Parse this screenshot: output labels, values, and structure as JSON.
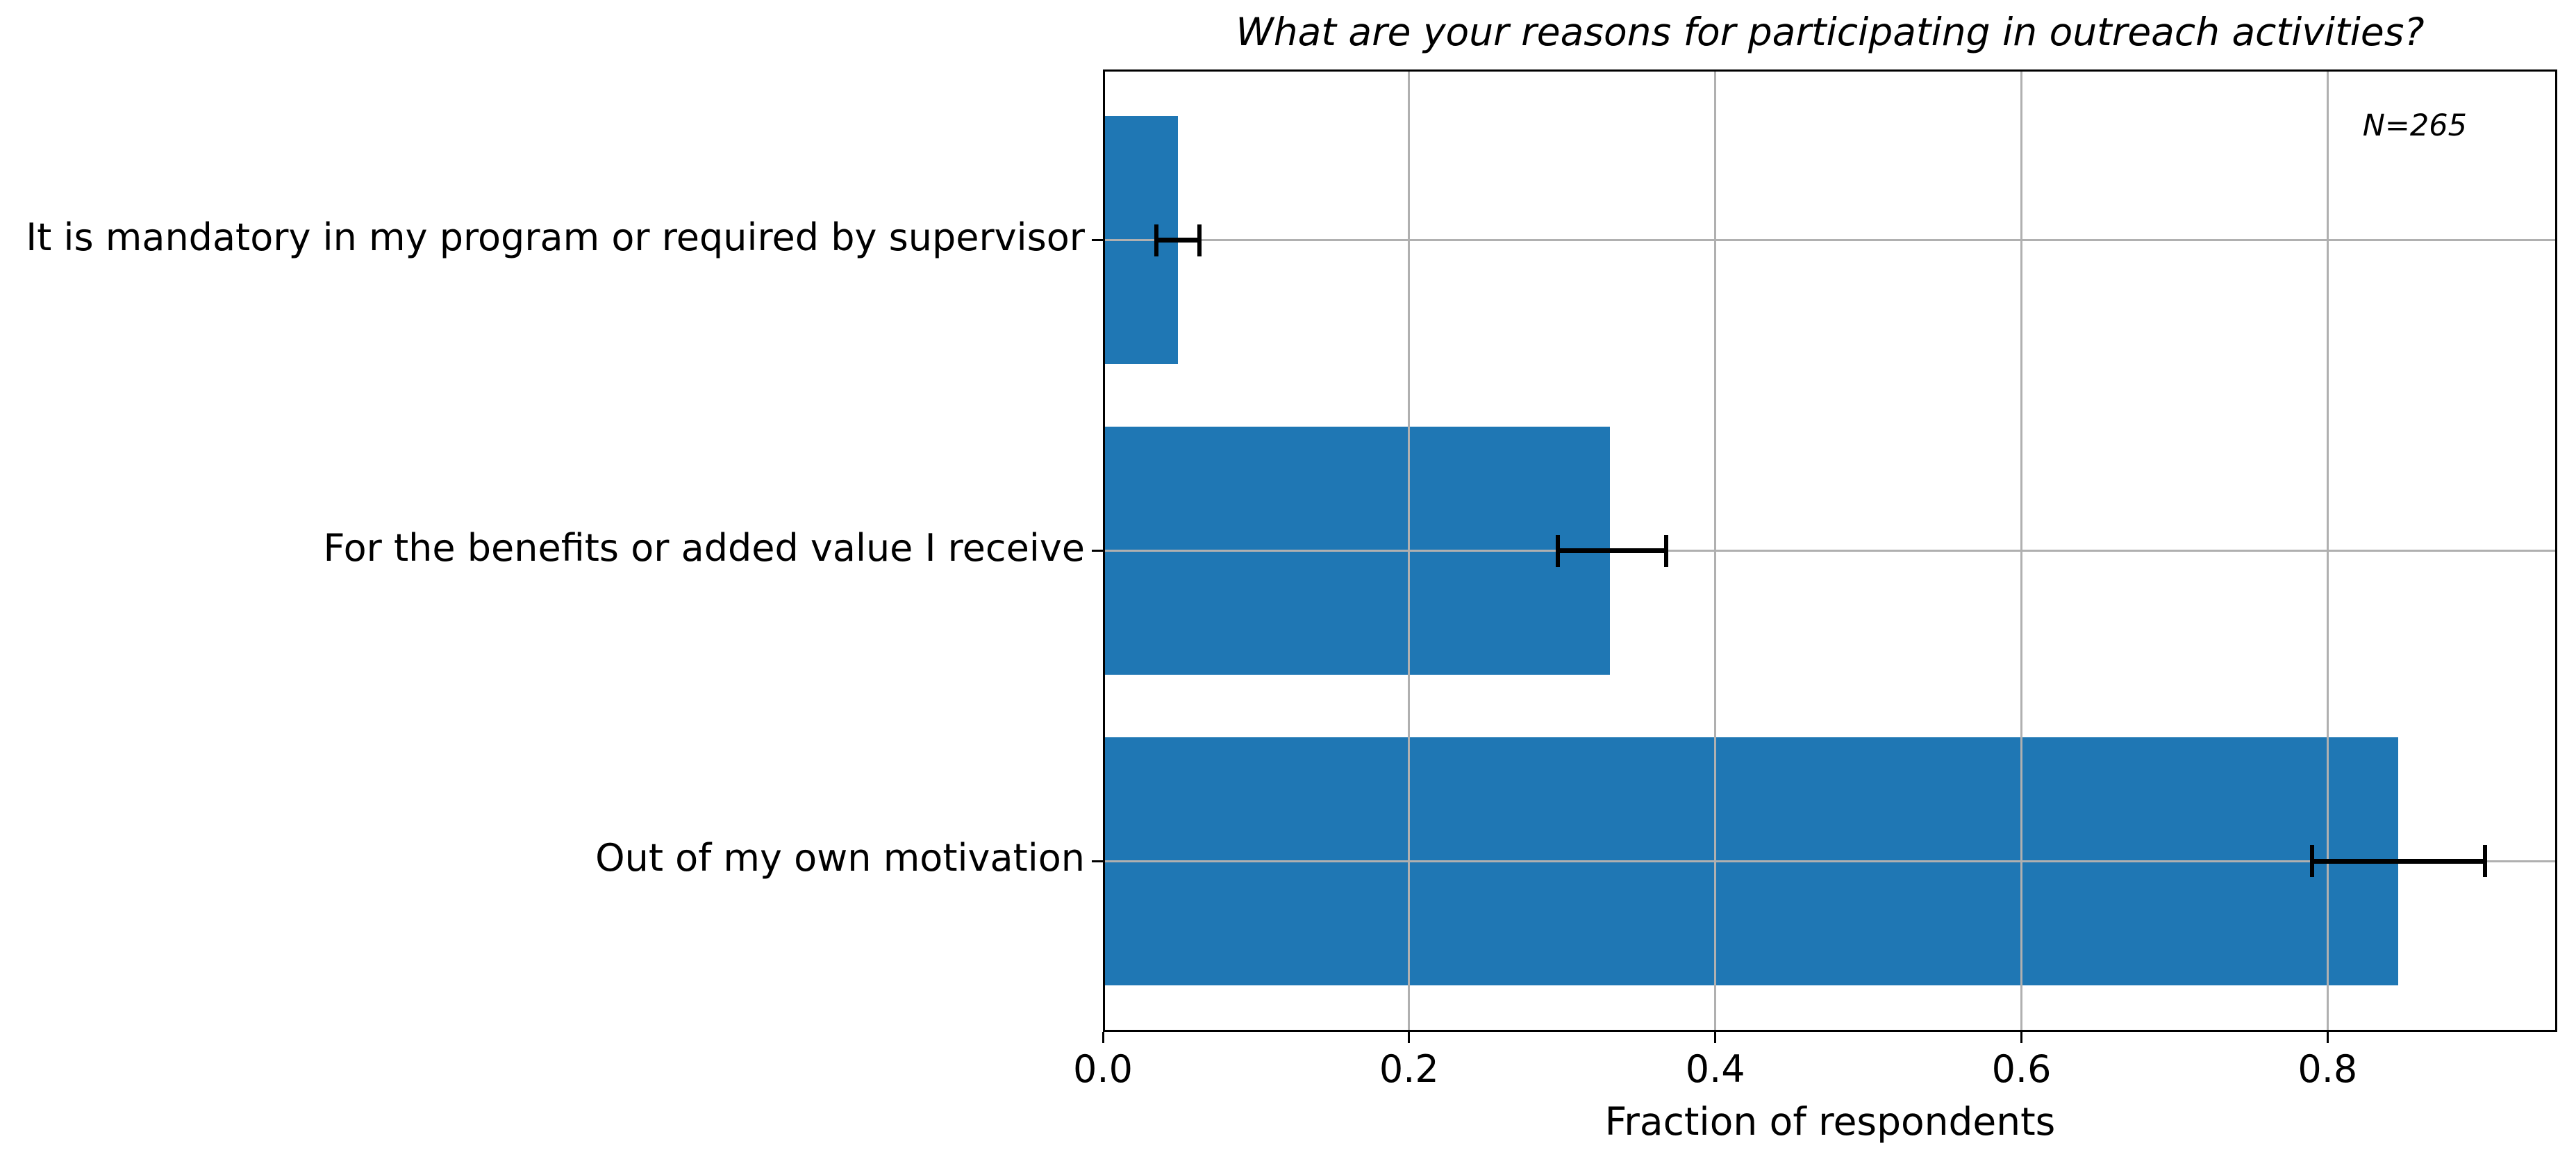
{
  "chart_data": {
    "type": "bar",
    "orientation": "horizontal",
    "title": "What are your reasons for participating in outreach activities?",
    "annotation": "N=265",
    "xlabel": "Fraction of respondents",
    "ylabel": "",
    "categories": [
      "It is mandatory in my program or required by supervisor",
      "For the benefits or added value I receive",
      "Out of my own motivation"
    ],
    "values": [
      0.049,
      0.331,
      0.846
    ],
    "error_low": [
      0.035,
      0.297,
      0.79
    ],
    "error_high": [
      0.063,
      0.368,
      0.903
    ],
    "xlim": [
      0,
      0.95
    ],
    "xticks": [
      0.0,
      0.2,
      0.4,
      0.6,
      0.8
    ],
    "xtick_labels": [
      "0.0",
      "0.2",
      "0.4",
      "0.6",
      "0.8"
    ],
    "grid": true,
    "grid_on_top_of_bars": true,
    "legend": null,
    "bar_color": "#1f77b4",
    "grid_color": "#b0b0b0",
    "error_color": "#000000",
    "axis_color": "#000000",
    "background_color": "#ffffff"
  }
}
